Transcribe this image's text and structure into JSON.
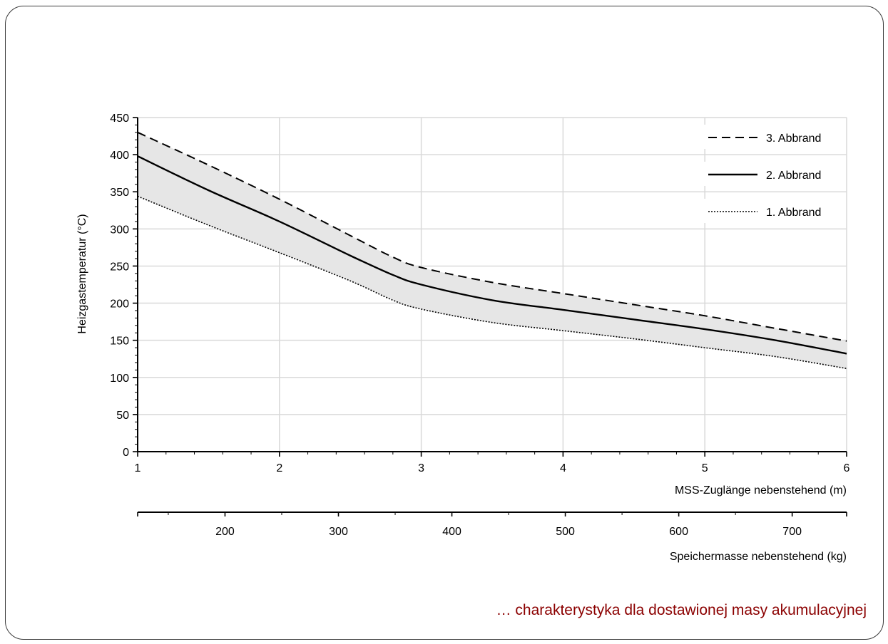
{
  "caption": "… charakterystyka dla dostawionej masy akumulacyjnej",
  "colors": {
    "band": "#e6e6e6",
    "grid": "#d9d9d9",
    "line": "#000000",
    "caption": "#8b0000"
  },
  "chart_data": {
    "type": "line",
    "title": "",
    "ylabel": "Heizgastemperatur (°C)",
    "xlabel": "MSS-Zuglänge nebenstehend (m)",
    "x2label": "Speichermasse nebenstehend (kg)",
    "xlim": [
      1,
      6
    ],
    "ylim": [
      0,
      450
    ],
    "xticks": [
      "1",
      "2",
      "3",
      "4",
      "5",
      "6"
    ],
    "yticks": [
      "0",
      "50",
      "100",
      "150",
      "200",
      "250",
      "300",
      "350",
      "400",
      "450"
    ],
    "x2lim": [
      123,
      748
    ],
    "x2ticks": [
      "200",
      "300",
      "400",
      "500",
      "600",
      "700"
    ],
    "grid": true,
    "legend_position": "top-right",
    "shaded_band_between": [
      "1. Abbrand",
      "3. Abbrand"
    ],
    "series": [
      {
        "name": "3. Abbrand",
        "style": "dashed",
        "x": [
          1,
          1.5,
          2,
          2.5,
          2.8,
          3,
          3.5,
          4,
          4.5,
          5,
          5.5,
          6
        ],
        "y": [
          430,
          386,
          340,
          291,
          262,
          248,
          228,
          213,
          198,
          183,
          166,
          149
        ]
      },
      {
        "name": "2. Abbrand",
        "style": "solid",
        "x": [
          1,
          1.5,
          2,
          2.5,
          2.8,
          3,
          3.5,
          4,
          4.5,
          5,
          5.5,
          6
        ],
        "y": [
          398,
          352,
          310,
          264,
          238,
          225,
          204,
          191,
          178,
          165,
          150,
          132
        ]
      },
      {
        "name": "1. Abbrand",
        "style": "dotted",
        "x": [
          1,
          1.5,
          2,
          2.5,
          2.8,
          3,
          3.5,
          4,
          4.5,
          5,
          5.5,
          6
        ],
        "y": [
          344,
          305,
          268,
          230,
          204,
          192,
          174,
          163,
          152,
          140,
          128,
          112
        ]
      }
    ]
  }
}
